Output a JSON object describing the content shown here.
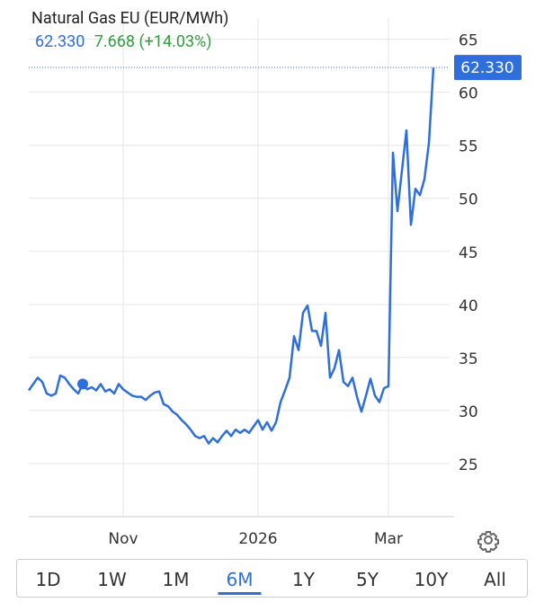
{
  "header": {
    "title": "Natural Gas EU (EUR/MWh)",
    "price": "62.330",
    "change": "7.668",
    "change_pct": "(+14.03%)"
  },
  "chart_data": {
    "type": "line",
    "categories": [
      null,
      null,
      null,
      null,
      null,
      null,
      null,
      null,
      null,
      null,
      null,
      null,
      null,
      null,
      null,
      null,
      null,
      null,
      null,
      null,
      null,
      "Nov",
      null,
      null,
      null,
      null,
      null,
      null,
      null,
      null,
      null,
      null,
      null,
      null,
      null,
      null,
      null,
      null,
      null,
      null,
      null,
      null,
      null,
      null,
      null,
      null,
      null,
      null,
      null,
      null,
      null,
      "2026",
      null,
      null,
      null,
      null,
      null,
      null,
      null,
      null,
      null,
      null,
      null,
      null,
      null,
      null,
      null,
      null,
      null,
      null,
      null,
      null,
      null,
      null,
      null,
      null,
      null,
      null,
      null,
      null,
      "Mar",
      null,
      null,
      null,
      null,
      null,
      null,
      null,
      null,
      null,
      null
    ],
    "series": [
      {
        "name": "Natural Gas EU",
        "color": "#2f6fdb",
        "values": [
          31.9,
          32.5,
          33.1,
          32.7,
          31.6,
          31.4,
          31.6,
          33.3,
          33.1,
          32.5,
          32.0,
          31.6,
          32.5,
          32.0,
          32.2,
          31.9,
          32.5,
          31.8,
          32.0,
          31.6,
          32.5,
          32.0,
          31.7,
          31.4,
          31.3,
          31.3,
          31.0,
          31.4,
          31.7,
          31.8,
          30.6,
          30.4,
          29.9,
          29.6,
          29.1,
          28.7,
          28.2,
          27.6,
          27.4,
          27.6,
          26.9,
          27.4,
          27.0,
          27.6,
          28.1,
          27.6,
          28.2,
          27.9,
          28.2,
          27.9,
          28.5,
          29.1,
          28.2,
          28.9,
          28.1,
          28.9,
          30.8,
          31.9,
          33.1,
          37.0,
          35.7,
          39.2,
          39.9,
          37.5,
          37.5,
          36.1,
          39.2,
          33.1,
          34.0,
          35.7,
          32.7,
          32.3,
          33.1,
          31.3,
          29.9,
          31.4,
          33.0,
          31.4,
          30.8,
          32.1,
          32.3,
          54.3,
          48.8,
          52.6,
          56.4,
          47.5,
          50.9,
          50.3,
          51.8,
          55.2,
          62.33
        ]
      }
    ],
    "ylim": [
      20,
      67
    ],
    "yticks": [
      25,
      30,
      35,
      40,
      45,
      50,
      55,
      60,
      65
    ],
    "grid": true
  },
  "tabs": [
    "1D",
    "1W",
    "1M",
    "6M",
    "1Y",
    "5Y",
    "10Y",
    "All"
  ],
  "selected_tab": "6M"
}
